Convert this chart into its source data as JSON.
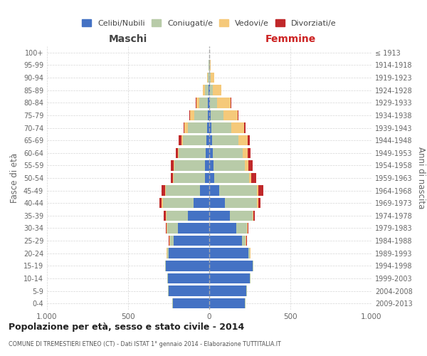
{
  "age_groups": [
    "0-4",
    "5-9",
    "10-14",
    "15-19",
    "20-24",
    "25-29",
    "30-34",
    "35-39",
    "40-44",
    "45-49",
    "50-54",
    "55-59",
    "60-64",
    "65-69",
    "70-74",
    "75-79",
    "80-84",
    "85-89",
    "90-94",
    "95-99",
    "100+"
  ],
  "birth_years": [
    "2009-2013",
    "2004-2008",
    "1999-2003",
    "1994-1998",
    "1989-1993",
    "1984-1988",
    "1979-1983",
    "1974-1978",
    "1969-1973",
    "1964-1968",
    "1959-1963",
    "1954-1958",
    "1949-1953",
    "1944-1948",
    "1939-1943",
    "1934-1938",
    "1929-1933",
    "1924-1928",
    "1919-1923",
    "1914-1918",
    "≤ 1913"
  ],
  "colors": {
    "celibi": "#4472C4",
    "coniugati": "#b8cba8",
    "vedovi": "#f5c97a",
    "divorziati": "#c0282a"
  },
  "males_celibi": [
    225,
    248,
    255,
    268,
    248,
    218,
    195,
    130,
    95,
    58,
    28,
    28,
    22,
    18,
    15,
    10,
    8,
    3,
    2,
    1,
    0
  ],
  "males_coniugati": [
    5,
    5,
    5,
    5,
    10,
    22,
    62,
    135,
    192,
    208,
    190,
    188,
    168,
    145,
    115,
    80,
    55,
    22,
    6,
    2,
    0
  ],
  "males_vedovi": [
    0,
    0,
    0,
    0,
    4,
    4,
    4,
    4,
    5,
    5,
    4,
    4,
    5,
    10,
    22,
    28,
    18,
    15,
    4,
    2,
    0
  ],
  "males_divorziati": [
    0,
    0,
    0,
    0,
    0,
    4,
    5,
    10,
    14,
    22,
    14,
    18,
    10,
    14,
    8,
    5,
    4,
    0,
    0,
    0,
    0
  ],
  "females_celibi": [
    218,
    228,
    248,
    268,
    242,
    200,
    168,
    128,
    98,
    62,
    32,
    28,
    22,
    18,
    12,
    8,
    6,
    4,
    2,
    1,
    0
  ],
  "females_coniugati": [
    5,
    5,
    5,
    5,
    10,
    25,
    65,
    138,
    198,
    232,
    212,
    192,
    182,
    162,
    122,
    78,
    42,
    18,
    6,
    2,
    0
  ],
  "females_vedovi": [
    0,
    0,
    0,
    0,
    4,
    4,
    5,
    5,
    5,
    10,
    16,
    22,
    35,
    58,
    82,
    88,
    82,
    52,
    22,
    5,
    2
  ],
  "females_divorziati": [
    0,
    0,
    0,
    0,
    0,
    4,
    5,
    10,
    14,
    28,
    28,
    24,
    14,
    10,
    8,
    8,
    4,
    0,
    0,
    0,
    0
  ],
  "title": "Popolazione per età, sesso e stato civile - 2014",
  "subtitle": "COMUNE DI TREMESTIERI ETNEO (CT) - Dati ISTAT 1° gennaio 2014 - Elaborazione TUTTITALIA.IT",
  "ylabel_left": "Fasce di età",
  "ylabel_right": "Anni di nascita",
  "xlabel_left": "Maschi",
  "xlabel_right": "Femmine",
  "xlim": 1000,
  "background_color": "#ffffff",
  "grid_color": "#cccccc"
}
